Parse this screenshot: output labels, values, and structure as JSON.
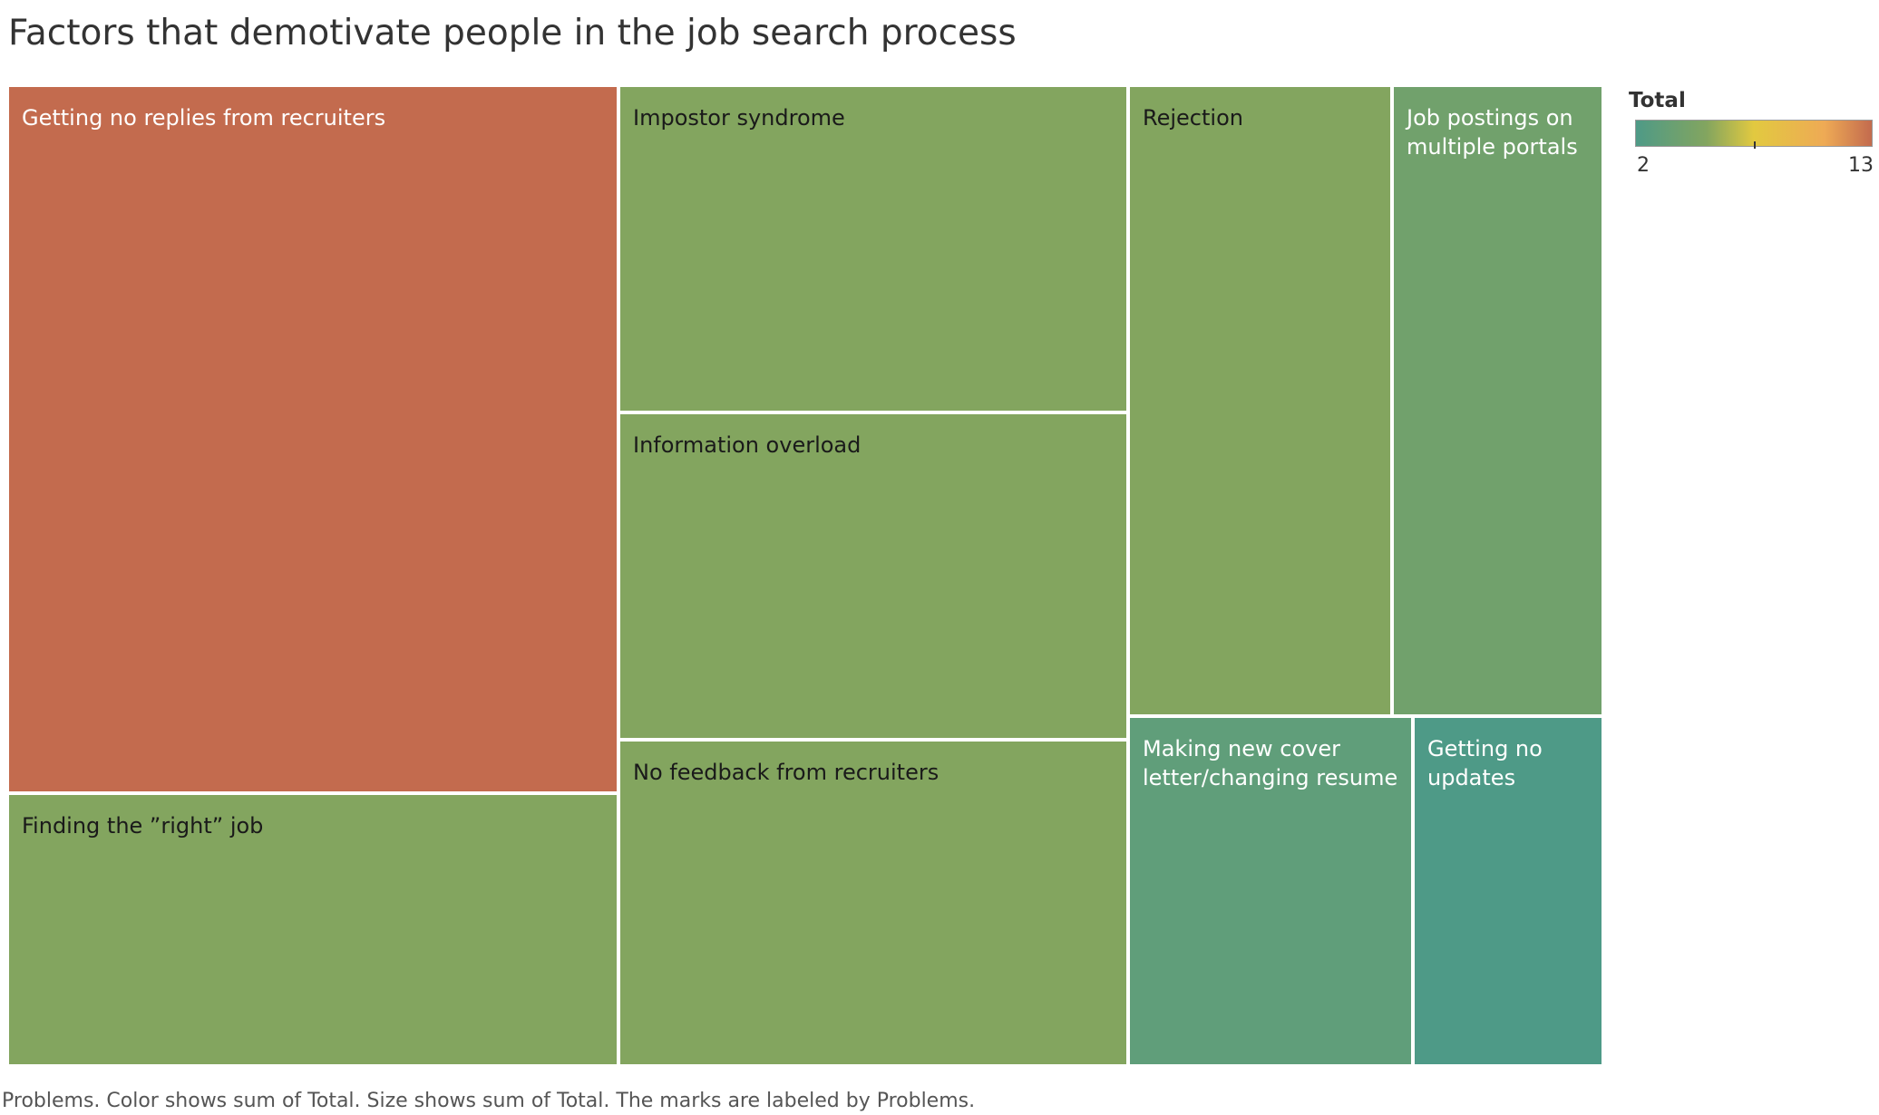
{
  "title": "Factors that demotivate people in the job search process",
  "caption": "Problems.  Color shows sum of Total.  Size shows sum of Total.  The marks are labeled by Problems.",
  "legend": {
    "title": "Total",
    "min_label": "2",
    "max_label": "13"
  },
  "colors": {
    "low": "#4e9a87",
    "mid_green": "#83a55f",
    "mid_yellow": "#e2c940",
    "high_orange": "#eeaa55",
    "max": "#c36b4e",
    "label_dark": "#1a1a1a",
    "label_light": "#ffffff"
  },
  "chart_data": {
    "type": "treemap",
    "title": "Factors that demotivate people in the job search process",
    "size_measure": "Total",
    "color_measure": "Total",
    "color_range": [
      2,
      13
    ],
    "items": [
      {
        "label": "Getting no replies from recruiters",
        "value": 13
      },
      {
        "label": "Finding the ”right” job",
        "value": 5
      },
      {
        "label": "Impostor syndrome",
        "value": 5
      },
      {
        "label": "Information overload",
        "value": 5
      },
      {
        "label": "No feedback from recruiters",
        "value": 5
      },
      {
        "label": "Rejection",
        "value": 5
      },
      {
        "label": "Job postings on multiple portals",
        "value": 4
      },
      {
        "label": "Making new cover letter/changing resume",
        "value": 3
      },
      {
        "label": "Getting no updates",
        "value": 2
      }
    ]
  }
}
